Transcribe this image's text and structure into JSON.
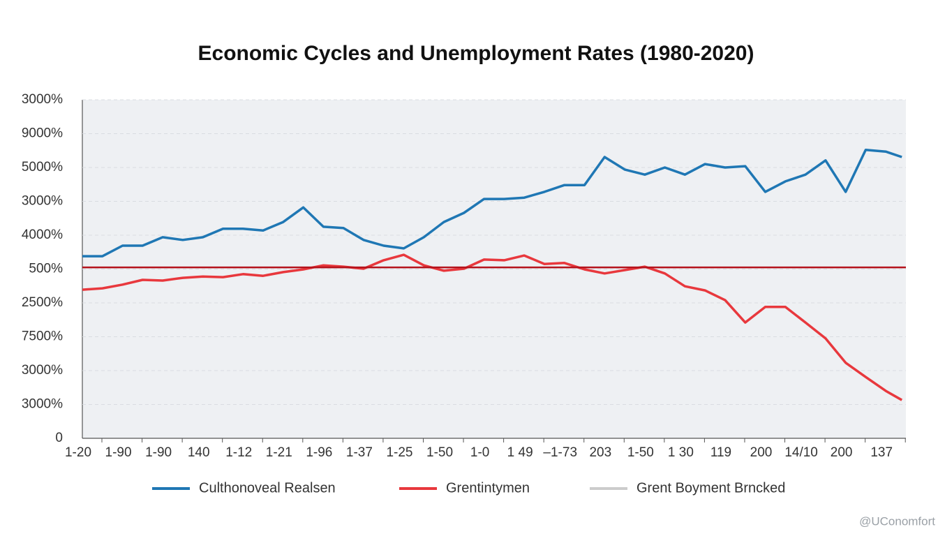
{
  "chart_data": {
    "type": "line",
    "title": "Economic Cycles and Unemployment Rates (1980-2020)",
    "watermark": "@UConomfort",
    "xlim": [
      0,
      20.5
    ],
    "xticks": [
      {
        "value": 0,
        "label": "1-20"
      },
      {
        "value": 1,
        "label": "1-90"
      },
      {
        "value": 2,
        "label": "1-90"
      },
      {
        "value": 3,
        "label": "140"
      },
      {
        "value": 4,
        "label": "1-12"
      },
      {
        "value": 5,
        "label": "1-21"
      },
      {
        "value": 6,
        "label": "1-96"
      },
      {
        "value": 7,
        "label": "1-37"
      },
      {
        "value": 8,
        "label": "1-25"
      },
      {
        "value": 9,
        "label": "1-50"
      },
      {
        "value": 10,
        "label": "1-0"
      },
      {
        "value": 11,
        "label": "1 49"
      },
      {
        "value": 12,
        "label": "–1-73"
      },
      {
        "value": 13,
        "label": "203"
      },
      {
        "value": 14,
        "label": "1-50"
      },
      {
        "value": 15,
        "label": "1 30"
      },
      {
        "value": 16,
        "label": "119"
      },
      {
        "value": 17,
        "label": "200"
      },
      {
        "value": 18,
        "label": "14/10"
      },
      {
        "value": 19,
        "label": "200"
      },
      {
        "value": 20,
        "label": "137"
      }
    ],
    "ylim": [
      0,
      100
    ],
    "yticks": [
      0,
      {
        "value": 10,
        "label": "3000%"
      },
      {
        "value": 20,
        "label": "3000%"
      },
      {
        "value": 30,
        "label": "7500%"
      },
      {
        "value": 40,
        "label": "2500%"
      },
      {
        "value": 50,
        "label": "500%"
      },
      {
        "value": 60,
        "label": "4000%"
      },
      {
        "value": 70,
        "label": "3000%"
      },
      {
        "value": 80,
        "label": "5000%"
      },
      {
        "value": 90,
        "label": "9000%"
      },
      {
        "value": 100,
        "label": "3000%"
      }
    ],
    "grid": true,
    "legend": "bottom",
    "series": [
      {
        "name": "Culthonoveal Realsen",
        "color": "#1f77b4",
        "x": [
          0,
          0.5,
          1,
          1.5,
          2,
          2.5,
          3,
          3.5,
          4,
          4.5,
          5,
          5.5,
          6,
          6.5,
          7,
          7.5,
          8,
          8.5,
          9,
          9.5,
          10,
          10.5,
          11,
          11.5,
          12,
          12.5,
          13,
          13.5,
          14,
          14.5,
          15,
          15.5,
          16,
          16.5,
          17,
          17.5,
          18,
          18.5,
          19,
          19.5,
          20,
          20.4
        ],
        "values": [
          53.8,
          53.8,
          56.9,
          56.9,
          59.4,
          58.6,
          59.4,
          61.9,
          61.9,
          61.4,
          63.9,
          68.2,
          62.5,
          62.1,
          58.6,
          56.9,
          56.1,
          59.4,
          63.9,
          66.6,
          70.7,
          70.7,
          71.1,
          72.8,
          74.8,
          74.8,
          83.1,
          79.4,
          77.9,
          80.0,
          77.9,
          81.0,
          80.0,
          80.4,
          72.8,
          75.9,
          77.9,
          82.1,
          72.8,
          85.2,
          84.7,
          83.1
        ]
      },
      {
        "name": "Grentintymen",
        "color": "#e8383d",
        "x": [
          0,
          0.5,
          1,
          1.5,
          2,
          2.5,
          3,
          3.5,
          4,
          4.5,
          5,
          5.5,
          6,
          6.5,
          7,
          7.5,
          8,
          8.5,
          9,
          9.5,
          10,
          10.5,
          11,
          11.5,
          12,
          12.5,
          13,
          13.5,
          14,
          14.5,
          15,
          15.5,
          16,
          16.5,
          17,
          17.5,
          18,
          18.5,
          19,
          19.5,
          20,
          20.4
        ],
        "values": [
          43.9,
          44.3,
          45.4,
          46.8,
          46.6,
          47.4,
          47.8,
          47.6,
          48.5,
          48.0,
          49.1,
          49.9,
          51.1,
          50.7,
          50.1,
          52.6,
          54.2,
          51.1,
          49.5,
          50.1,
          52.8,
          52.6,
          54.0,
          51.5,
          51.8,
          49.9,
          48.7,
          49.7,
          50.7,
          48.7,
          44.9,
          43.7,
          40.8,
          34.2,
          38.8,
          38.8,
          34.2,
          29.5,
          22.3,
          18.1,
          14.0,
          11.3
        ]
      },
      {
        "name": "Grent Boyment Brncked",
        "color": "#b5121b",
        "legend_color": "#cccccc",
        "x": [
          0,
          20.5
        ],
        "values": [
          50.5,
          50.5
        ]
      }
    ]
  }
}
